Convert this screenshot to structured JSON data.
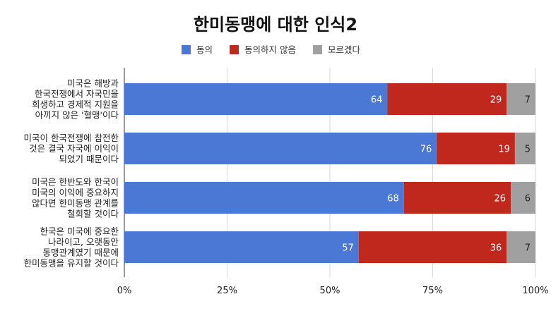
{
  "chart_data": {
    "type": "bar",
    "orientation": "horizontal",
    "stacked": true,
    "percent": true,
    "title": "한미동맹에 대한 인식2",
    "legend_position": "top",
    "categories": [
      [
        "미국은 해방과",
        "한국전쟁에서 자국민을",
        "희생하고 경제적 지원을",
        "아끼지 않은 '혈맹'이다"
      ],
      [
        "미국이 한국전쟁에 참전한",
        "것은 결국 자국에 이익이",
        "되었기 때문이다"
      ],
      [
        "미국은 한반도와 한국이",
        "미국의 이익에 중요하지",
        "않다면 한미동맹 관계를",
        "철회할 것이다"
      ],
      [
        "한국은 미국에 중요한",
        "나라이고, 오랫동안",
        "동맹관계였기 때문에",
        "한미동맹을 유지할 것이다"
      ]
    ],
    "series": [
      {
        "name": "동의",
        "color": "#4a78d4",
        "values": [
          64,
          76,
          68,
          57
        ]
      },
      {
        "name": "동의하지 않음",
        "color": "#c0281e",
        "values": [
          29,
          19,
          26,
          36
        ]
      },
      {
        "name": "모르겠다",
        "color": "#a0a0a0",
        "values": [
          7,
          5,
          6,
          7
        ]
      }
    ],
    "xlim": [
      0,
      100
    ],
    "xticks": [
      "0%",
      "25%",
      "50%",
      "75%",
      "100%"
    ],
    "grid": true
  }
}
